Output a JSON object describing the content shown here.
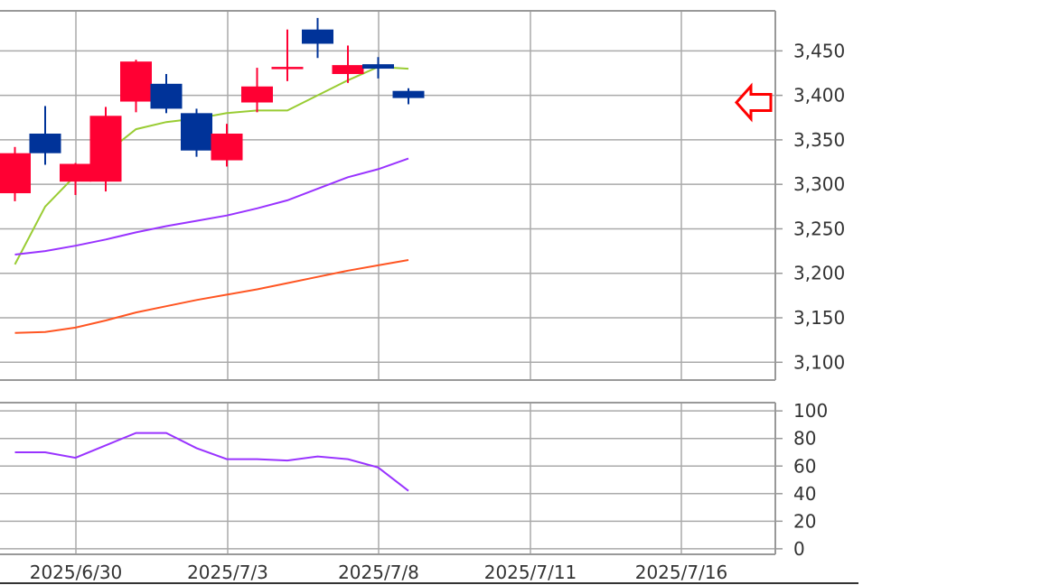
{
  "chart_data": [
    {
      "type": "candlestick",
      "title": "",
      "x_tick_labels": [
        "2025/6/30",
        "2025/7/3",
        "2025/7/8",
        "2025/7/11",
        "2025/7/16"
      ],
      "y_ticks": [
        "3,100",
        "3,150",
        "3,200",
        "3,250",
        "3,300",
        "3,350",
        "3,400",
        "3,450"
      ],
      "ylim": [
        3080,
        3495
      ],
      "grid": true,
      "candles": [
        {
          "open": 3290,
          "high": 3342,
          "low": 3281,
          "close": 3335
        },
        {
          "open": 3357,
          "high": 3388,
          "low": 3322,
          "close": 3335
        },
        {
          "open": 3303,
          "high": 3324,
          "low": 3288,
          "close": 3323
        },
        {
          "open": 3303,
          "high": 3387,
          "low": 3292,
          "close": 3377
        },
        {
          "open": 3393,
          "high": 3440,
          "low": 3381,
          "close": 3438
        },
        {
          "open": 3413,
          "high": 3424,
          "low": 3380,
          "close": 3385
        },
        {
          "open": 3380,
          "high": 3385,
          "low": 3331,
          "close": 3338
        },
        {
          "open": 3327,
          "high": 3368,
          "low": 3320,
          "close": 3357
        },
        {
          "open": 3392,
          "high": 3431,
          "low": 3381,
          "close": 3410
        },
        {
          "open": 3432,
          "high": 3474,
          "low": 3416,
          "close": 3432
        },
        {
          "open": 3474,
          "high": 3487,
          "low": 3442,
          "close": 3458
        },
        {
          "open": 3424,
          "high": 3456,
          "low": 3414,
          "close": 3434
        },
        {
          "open": 3435,
          "high": 3443,
          "low": 3419,
          "close": 3430
        },
        {
          "open": 3405,
          "high": 3408,
          "low": 3390,
          "close": 3397
        }
      ],
      "series": [
        {
          "color": "#99cc33",
          "values": [
            3210,
            3275,
            3310,
            3335,
            3362,
            3370,
            3374,
            3380,
            3383,
            3383,
            3400,
            3417,
            3432,
            3430
          ]
        },
        {
          "color": "#9933ff",
          "values": [
            3221,
            3225,
            3231,
            3238,
            3246,
            3253,
            3259,
            3265,
            3273,
            3282,
            3295,
            3308,
            3317,
            3329
          ]
        },
        {
          "color": "#ff5522",
          "values": [
            3133,
            3134,
            3139,
            3147,
            3156,
            3163,
            3170,
            3176,
            3182,
            3189,
            3196,
            3203,
            3209,
            3215
          ]
        }
      ],
      "up_color": "#ff0033",
      "down_color": "#003399",
      "current_price_marker": 3392,
      "marker_color": "#ff0000"
    },
    {
      "type": "line",
      "title": "",
      "x_tick_labels": [
        "2025/6/30",
        "2025/7/3",
        "2025/7/8",
        "2025/7/11",
        "2025/7/16"
      ],
      "y_ticks": [
        "0",
        "20",
        "40",
        "60",
        "80",
        "100"
      ],
      "ylim": [
        -4,
        106
      ],
      "grid": true,
      "series": [
        {
          "color": "#9933ff",
          "values": [
            70,
            70,
            66,
            75,
            84,
            84,
            73,
            65,
            65,
            64,
            67,
            65,
            59,
            42
          ]
        }
      ]
    }
  ]
}
